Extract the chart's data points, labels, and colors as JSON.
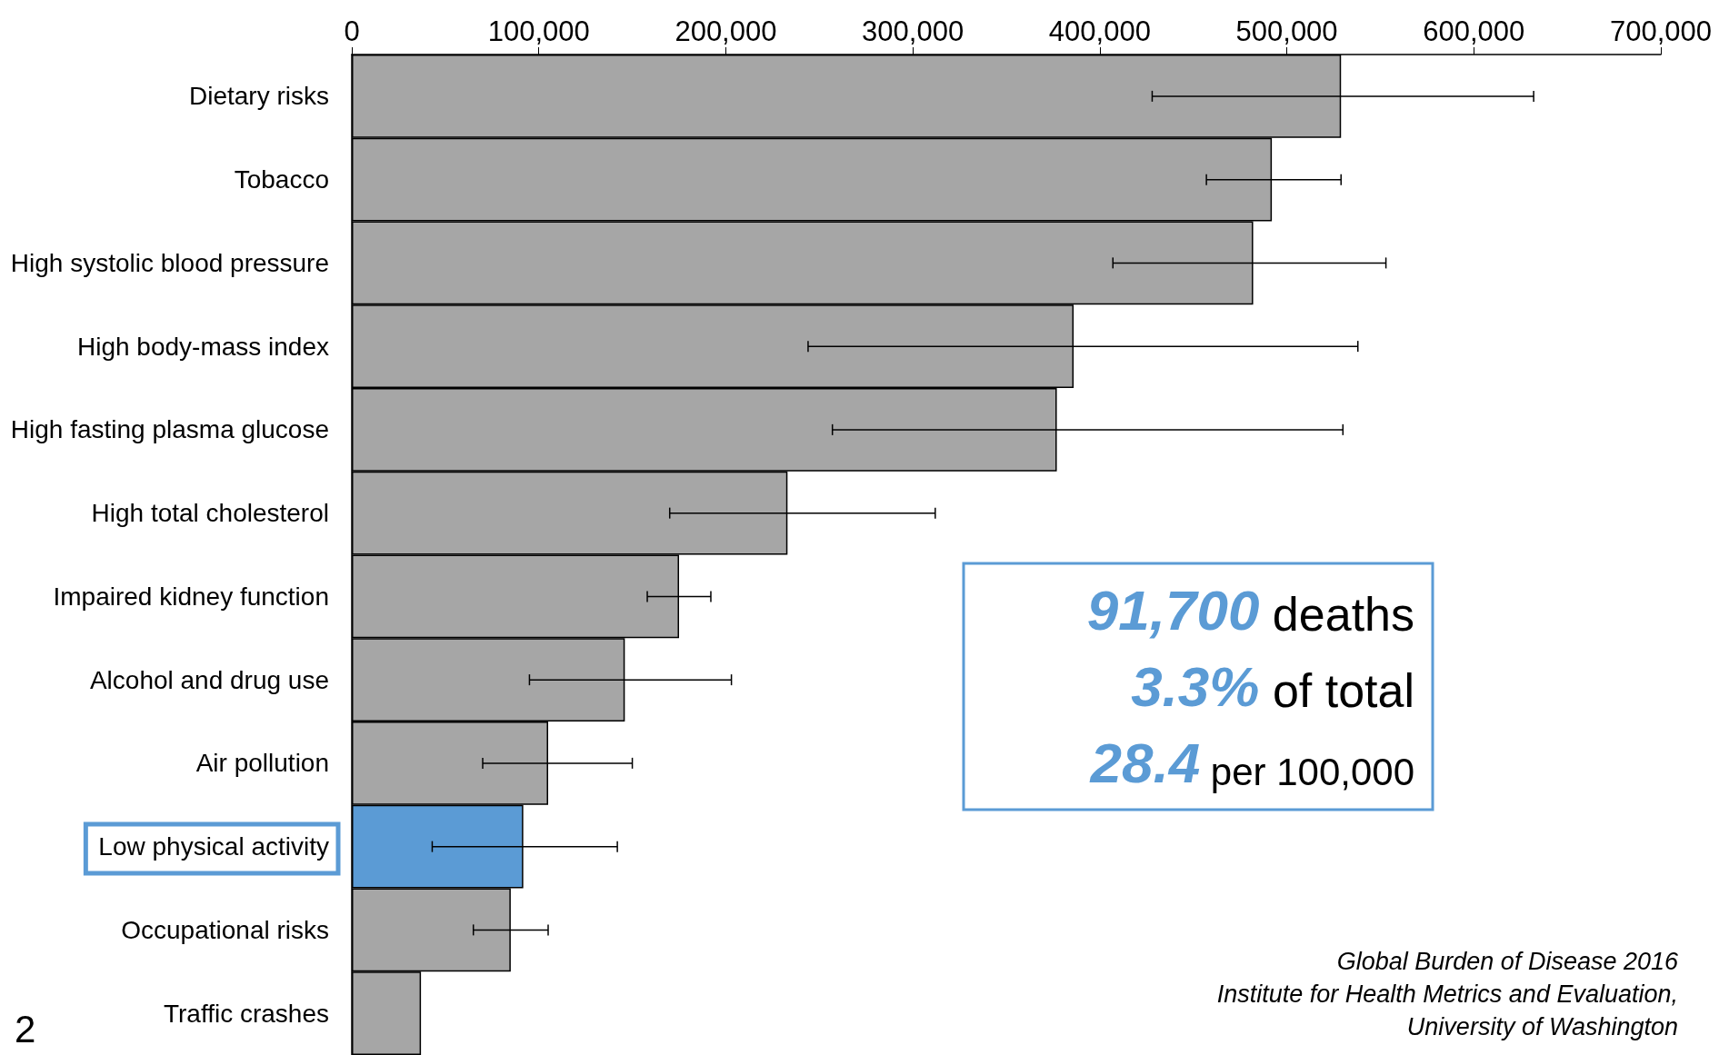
{
  "chart_data": {
    "type": "bar",
    "orientation": "horizontal",
    "categories": [
      "Dietary risks",
      "Tobacco",
      "High systolic blood pressure",
      "High body-mass index",
      "High fasting plasma glucose",
      "High total cholesterol",
      "Impaired kidney function",
      "Alcohol and drug use",
      "Air pollution",
      "Low physical activity",
      "Occupational risks",
      "Traffic crashes"
    ],
    "values": [
      529000,
      492000,
      482000,
      386000,
      377000,
      233000,
      175000,
      146000,
      105000,
      91700,
      85000,
      37000
    ],
    "colors": [
      "#a6a6a6",
      "#a6a6a6",
      "#a6a6a6",
      "#a6a6a6",
      "#a6a6a6",
      "#a6a6a6",
      "#a6a6a6",
      "#a6a6a6",
      "#a6a6a6",
      "#5b9bd5",
      "#a6a6a6",
      "#a6a6a6"
    ],
    "errors": [
      [
        428000,
        632000
      ],
      [
        457000,
        529000
      ],
      [
        407000,
        553000
      ],
      [
        244000,
        538000
      ],
      [
        257000,
        530000
      ],
      [
        170000,
        312000
      ],
      [
        158000,
        192000
      ],
      [
        95000,
        203000
      ],
      [
        70000,
        150000
      ],
      [
        43000,
        142000
      ],
      [
        65000,
        105000
      ],
      null
    ],
    "xlim": [
      0,
      700000
    ],
    "xticks": [
      0,
      {
        "value": 100000,
        "label": "100,000"
      },
      {
        "value": 200000,
        "label": "200,000"
      },
      {
        "value": 300000,
        "label": "300,000"
      },
      {
        "value": 400000,
        "label": "400,000"
      },
      {
        "value": 500000,
        "label": "500,000"
      },
      {
        "value": 600000,
        "label": "600,000"
      },
      {
        "value": 700000,
        "label": "700,000"
      }
    ],
    "grid": false,
    "annotations": [
      "91,700 deaths",
      "3.3% of total",
      "28.4 per 100,000",
      "Global Burden of Disease 2016\nInstitute for Health Metrics and Evaluation,\nUniversity of Washington",
      "2"
    ]
  }
}
